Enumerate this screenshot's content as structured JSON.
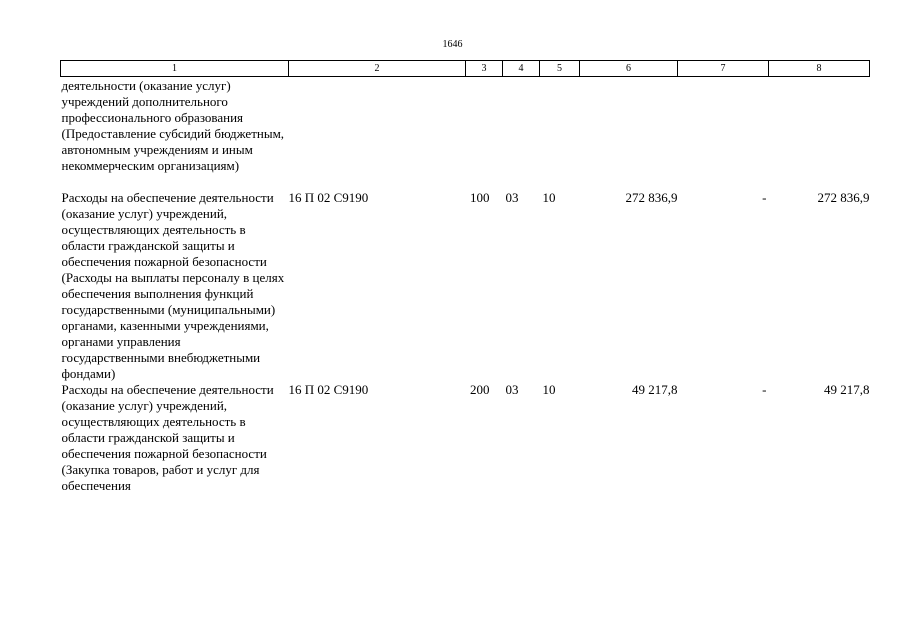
{
  "page_number": "1646",
  "columns": [
    "1",
    "2",
    "3",
    "4",
    "5",
    "6",
    "7",
    "8"
  ],
  "rows": [
    {
      "name": "деятельности (оказание услуг) учреждений дополнительного профессионального образования (Предоставление субсидий бюджетным, автономным учреждениям и иным некоммерческим организациям)",
      "csr": "",
      "vr": "",
      "rz": "",
      "pr": "",
      "sum_total": "",
      "sum_change": "",
      "sum_result": ""
    },
    {
      "name": "Расходы на обеспечение деятельности (оказание услуг) учреждений, осуществляющих деятельность в области гражданской защиты и обеспечения пожарной безопасности (Расходы на выплаты персоналу в целях обеспечения выполнения функций государственными (муниципальными) органами, казенными учреждениями, органами управления государственными внебюджетными фондами)",
      "csr": "16 П 02 С9190",
      "vr": "100",
      "rz": "03",
      "pr": "10",
      "sum_total": "272 836,9",
      "sum_change": "-",
      "sum_result": "272 836,9"
    },
    {
      "name": "Расходы на обеспечение деятельности (оказание услуг) учреждений, осуществляющих деятельность в области гражданской защиты и обеспечения пожарной безопасности (Закупка товаров, работ и услуг для обеспечения",
      "csr": "16 П 02 С9190",
      "vr": "200",
      "rz": "03",
      "pr": "10",
      "sum_total": "49 217,8",
      "sum_change": "-",
      "sum_result": "49 217,8"
    }
  ]
}
